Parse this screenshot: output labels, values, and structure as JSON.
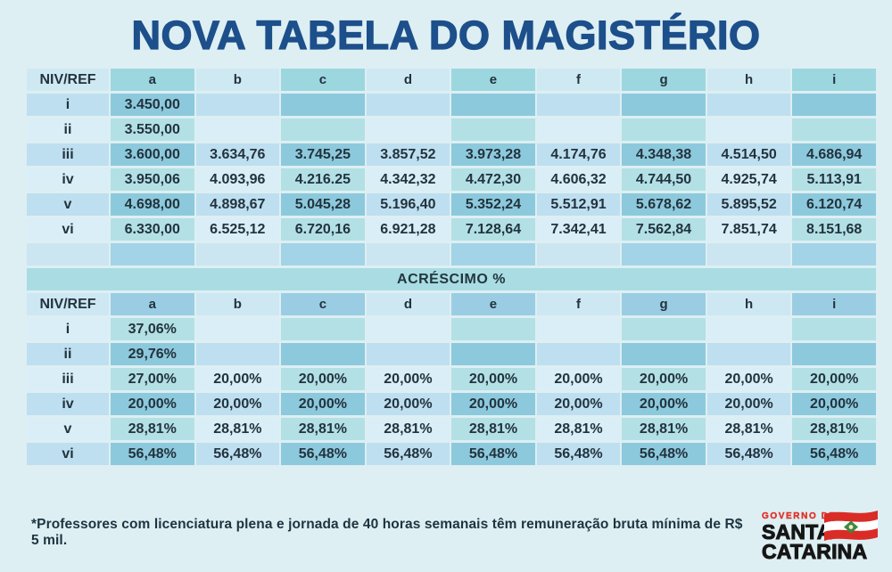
{
  "title": "NOVA TABELA DO MAGISTÉRIO",
  "colors": {
    "page_bg": "#ddeff3",
    "title": "#1d4f8b",
    "band_bg": "#a9dce3",
    "accent_dark": "#8dc9dc",
    "accent_light": "#b3e0e5",
    "plain_dark": "#bedff0",
    "plain_light": "#daeef7",
    "logo_red": "#e23229",
    "flag_green": "#3a8a41"
  },
  "table": {
    "columns": [
      "NIV/REF",
      "a",
      "b",
      "c",
      "d",
      "e",
      "f",
      "g",
      "h",
      "i"
    ],
    "salaries": {
      "rows": [
        {
          "label": "i",
          "values": [
            "3.450,00",
            "",
            "",
            "",
            "",
            "",
            "",
            "",
            ""
          ]
        },
        {
          "label": "ii",
          "values": [
            "3.550,00",
            "",
            "",
            "",
            "",
            "",
            "",
            "",
            ""
          ]
        },
        {
          "label": "iii",
          "values": [
            "3.600,00",
            "3.634,76",
            "3.745,25",
            "3.857,52",
            "3.973,28",
            "4.174,76",
            "4.348,38",
            "4.514,50",
            "4.686,94"
          ]
        },
        {
          "label": "iv",
          "values": [
            "3.950,06",
            "4.093,96",
            "4.216.25",
            "4.342,32",
            "4.472,30",
            "4.606,32",
            "4.744,50",
            "4.925,74",
            "5.113,91"
          ]
        },
        {
          "label": "v",
          "values": [
            "4.698,00",
            "4.898,67",
            "5.045,28",
            "5.196,40",
            "5.352,24",
            "5.512,91",
            "5.678,62",
            "5.895,52",
            "6.120,74"
          ]
        },
        {
          "label": "vi",
          "values": [
            "6.330,00",
            "6.525,12",
            "6.720,16",
            "6.921,28",
            "7.128,64",
            "7.342,41",
            "7.562,84",
            "7.851,74",
            "8.151,68"
          ]
        }
      ]
    },
    "band_label": "ACRÉSCIMO %",
    "increases": {
      "rows": [
        {
          "label": "i",
          "values": [
            "37,06%",
            "",
            "",
            "",
            "",
            "",
            "",
            "",
            ""
          ]
        },
        {
          "label": "ii",
          "values": [
            "29,76%",
            "",
            "",
            "",
            "",
            "",
            "",
            "",
            ""
          ]
        },
        {
          "label": "iii",
          "values": [
            "27,00%",
            "20,00%",
            "20,00%",
            "20,00%",
            "20,00%",
            "20,00%",
            "20,00%",
            "20,00%",
            "20,00%"
          ]
        },
        {
          "label": "iv",
          "values": [
            "20,00%",
            "20,00%",
            "20,00%",
            "20,00%",
            "20,00%",
            "20,00%",
            "20,00%",
            "20,00%",
            "20,00%"
          ]
        },
        {
          "label": "v",
          "values": [
            "28,81%",
            "28,81%",
            "28,81%",
            "28,81%",
            "28,81%",
            "28,81%",
            "28,81%",
            "28,81%",
            "28,81%"
          ]
        },
        {
          "label": "vi",
          "values": [
            "56,48%",
            "56,48%",
            "56,48%",
            "56,48%",
            "56,48%",
            "56,48%",
            "56,48%",
            "56,48%",
            "56,48%"
          ]
        }
      ]
    }
  },
  "footer": {
    "note": "*Professores com licenciatura plena e jornada de 40 horas semanais têm remuneração bruta mínima de R$ 5 mil."
  },
  "logo": {
    "top": "GOVERNO DE",
    "line1": "SANTA",
    "line2": "CATARINA"
  }
}
